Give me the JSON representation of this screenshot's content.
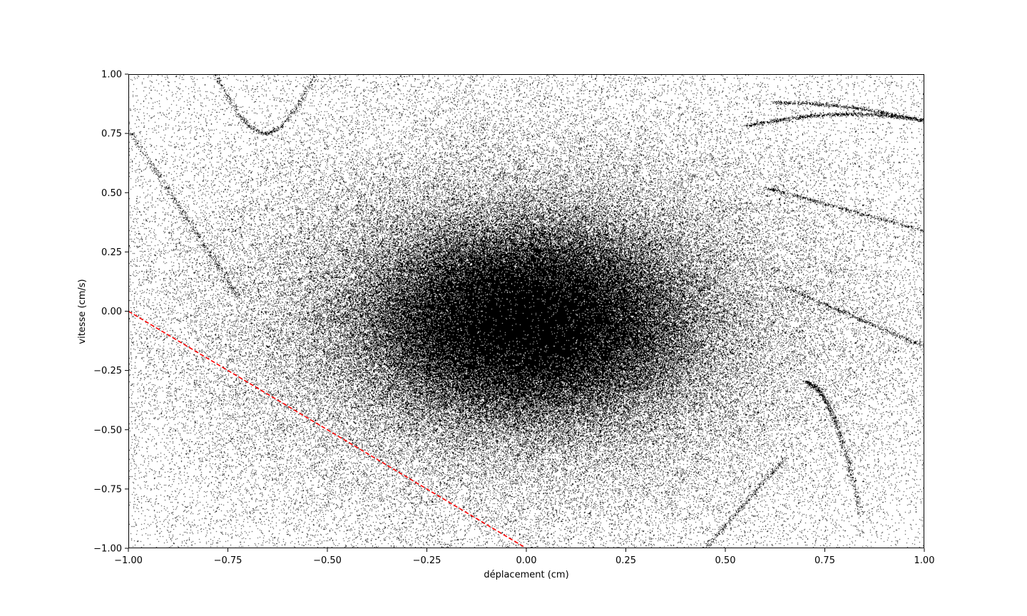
{
  "chart_data": {
    "type": "scatter",
    "title": "",
    "xlabel": "déplacement (cm)",
    "ylabel": "vitesse (cm/s)",
    "xlim": [
      -1.0,
      1.0
    ],
    "ylim": [
      -1.0,
      1.0
    ],
    "xticks": [
      -1.0,
      -0.75,
      -0.5,
      -0.25,
      0.0,
      0.25,
      0.5,
      0.75,
      1.0
    ],
    "yticks": [
      -1.0,
      -0.75,
      -0.5,
      -0.25,
      0.0,
      0.25,
      0.5,
      0.75,
      1.0
    ],
    "xtick_labels": [
      "−1.00",
      "−0.75",
      "−0.50",
      "−0.25",
      "0.00",
      "0.25",
      "0.50",
      "0.75",
      "1.00"
    ],
    "ytick_labels": [
      "−1.00",
      "−0.75",
      "−0.50",
      "−0.25",
      "0.00",
      "0.25",
      "0.50",
      "0.75",
      "1.00"
    ],
    "grid": false,
    "legend": "none",
    "series": [
      {
        "kind": "scatter",
        "marker": "pixel",
        "color": "#000000",
        "description_of_distribution": {
          "center": [
            0.0,
            -0.05
          ],
          "core_spread": [
            0.2,
            0.2
          ],
          "halo_spread": [
            0.45,
            0.45
          ]
        }
      },
      {
        "kind": "line",
        "style": "dashed",
        "color": "#ff0000",
        "x": [
          -1.0,
          0.0
        ],
        "y": [
          0.0,
          -1.0
        ]
      }
    ]
  }
}
